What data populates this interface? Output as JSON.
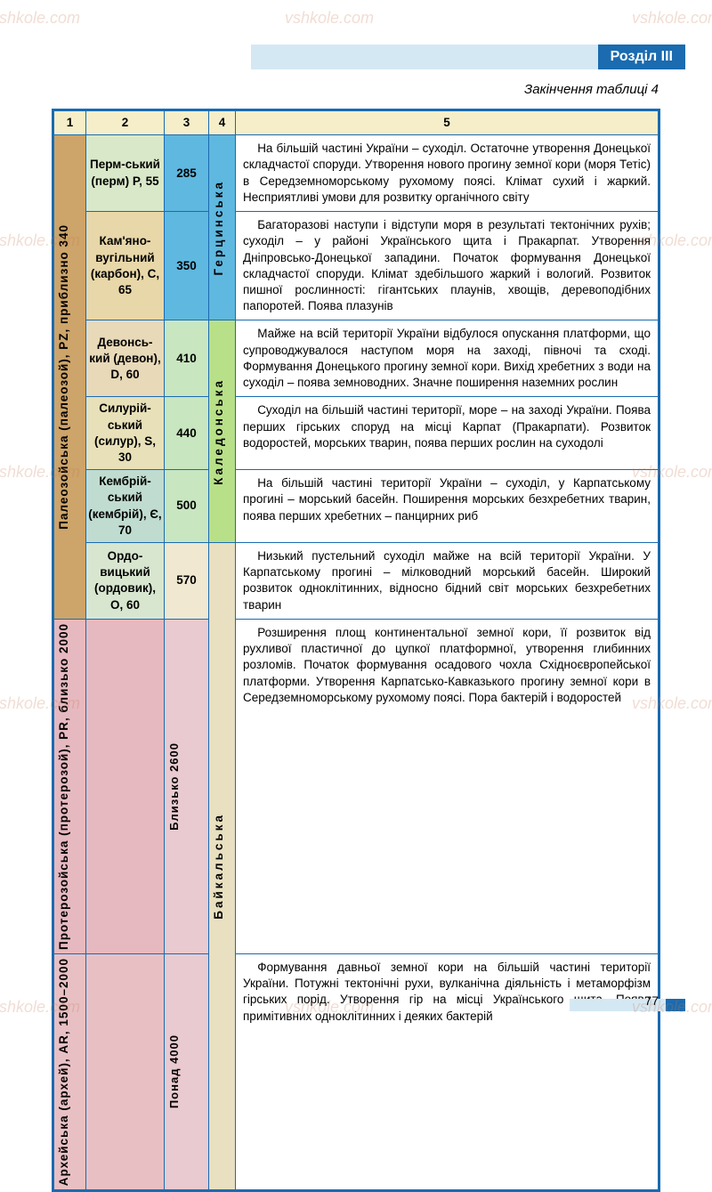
{
  "header": {
    "title": "Розділ ІІІ"
  },
  "caption": "Закінчення таблиці 4",
  "page_number": "77",
  "watermark_text": "vshkole.com",
  "colors": {
    "header_light": "#d4e8f4",
    "header_dark": "#1a6bb0",
    "border": "#1a6bb0",
    "th_bg": "#f5eec9",
    "era_paleozoic": "#cda46a",
    "era_proterozoic": "#e6b9c0",
    "era_archean": "#e8c0c4",
    "perm": "#d9e8c8",
    "carbon": "#e8d7a8",
    "devon": "#e8d9b8",
    "silur": "#e8e0b8",
    "cambrian": "#c0dcd0",
    "ordov": "#d8e6d0",
    "protero_p": "#e8c8d0",
    "archean_p": "#e6c8c8",
    "num_blue": "#5fb8e0",
    "num_lightgreen": "#c8e6c0",
    "num_cream": "#f0e8d0",
    "num_pink": "#e8cad0",
    "fold_hercyn": "#5fb8e0",
    "fold_caledon": "#b8e088",
    "fold_baikal": "#e8e0c0"
  },
  "columns": [
    "1",
    "2",
    "3",
    "4",
    "5"
  ],
  "eras": [
    {
      "key": "paleozoic",
      "label": "Палеозойська (палеозой), PZ, приблизно 340",
      "rowspan": 6
    },
    {
      "key": "proterozoic",
      "label": "Протерозойська (протерозой), PR, близько 2000",
      "rowspan": 1
    },
    {
      "key": "archean",
      "label": "Архейська (архей), AR, 1500–2000",
      "rowspan": 1
    }
  ],
  "folds": [
    {
      "key": "hercyn",
      "label": "Герцинська"
    },
    {
      "key": "caledon",
      "label": "Каледонська"
    },
    {
      "key": "baikal",
      "label": "Байкальська"
    }
  ],
  "rows": [
    {
      "period": "Перм-ський (перм) P, 55",
      "period_bg": "perm",
      "num": "285",
      "num_bg": "num_blue",
      "fold_key": "hercyn",
      "fold_rowspan": 2,
      "desc": "На більшій частині України – суходіл. Остаточне утворення Донецької складчастої споруди. Утворення нового прогину земної кори (моря Тетіс) в Середземноморському рухомому поясі. Клімат сухий і жаркий. Несприятливі умови для розвитку органічного світу"
    },
    {
      "period": "Кам'яно-вугільний (карбон), C, 65",
      "period_bg": "carbon",
      "num": "350",
      "num_bg": "num_blue",
      "desc": "Багаторазові наступи і відступи моря в результаті тектонічних рухів; суходіл – у районі Українського щита і Пракарпат. Утворення Дніпровсько-Донецької западини. Початок формування Донецької складчастої споруди. Клімат здебільшого жаркий і вологий. Розвиток пишної рослинності: гігантських плаунів, хвощів, деревоподібних папоротей. Поява плазунів"
    },
    {
      "period": "Девонсь-кий (девон), D, 60",
      "period_bg": "devon",
      "num": "410",
      "num_bg": "num_lightgreen",
      "fold_key": "caledon",
      "fold_rowspan": 3,
      "desc": "Майже на всій території України відбулося опускання платформи, що супроводжувалося наступом моря на заході, півночі та сході. Формування Донецького прогину земної кори. Вихід хребетних з води на суходіл – поява земноводних. Значне поширення наземних рослин"
    },
    {
      "period": "Силурій-ський (силур), S, 30",
      "period_bg": "silur",
      "num": "440",
      "num_bg": "num_lightgreen",
      "desc": "Суходіл на більшій частині території, море – на заході України. Поява перших гірських споруд на місці Карпат (Пракарпати). Розвиток водоростей, морських тварин, поява перших рослин на суходолі"
    },
    {
      "period": "Кембрій-ський (кембрій), Є, 70",
      "period_bg": "cambrian",
      "num": "500",
      "num_bg": "num_lightgreen",
      "desc": "На більшій частині території України – суходіл, у Карпатському прогині – морський басейн. Поширення морських безхребетних тварин, поява перших хребетних – панцирних риб"
    },
    {
      "period": "Ордо-вицький (ордовик), O, 60",
      "period_bg": "ordov",
      "num": "570",
      "num_bg": "num_cream",
      "fold_key": "baikal",
      "fold_rowspan": 3,
      "desc": "Низький пустельний суходіл майже на всій території України. У Карпатському прогині – мілководний морський басейн. Широкий розвиток одноклітинних, відносно бідний світ морських безхребетних тварин"
    },
    {
      "period": "",
      "period_bg": "protero_p",
      "num": "Близько 2600",
      "num_bg": "num_pink",
      "desc": "Розширення площ континентальної земної кори, її розвиток від рухливої пластичної до цупкої платформної, утворення глибинних розломів. Початок формування осадового чохла Східноєвропейської платформи. Утворення Карпатсько-Кавказького прогину земної кори в Середземноморському рухомому поясі.  Пора бактерій і водоростей"
    },
    {
      "period": "",
      "period_bg": "archean_p",
      "num": "Понад 4000",
      "num_bg": "num_pink",
      "desc": "Формування давньої земної кори на більшій частині території України. Потужні тектонічні рухи, вулканічна діяльність і метаморфізм гірських порід. Утворення гір на місці Українського щита.  Поява примітивних одноклітинних і деяких бактерій"
    }
  ]
}
